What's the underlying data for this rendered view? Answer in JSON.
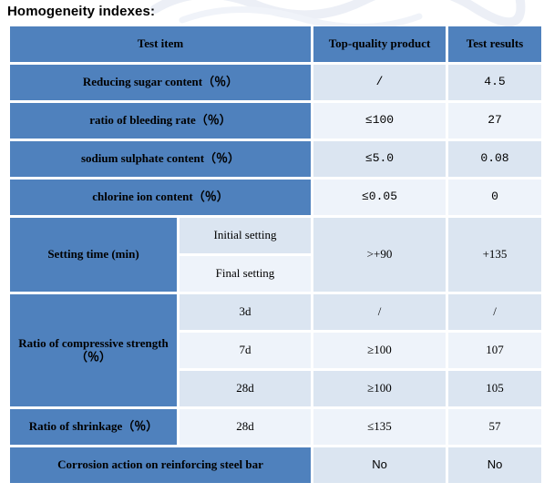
{
  "heading": "Homogeneity indexes:",
  "header": {
    "test_item": "Test item",
    "top_quality": "Top-quality product",
    "test_results": "Test results"
  },
  "rows": {
    "reducing_sugar": {
      "label": "Reducing sugar content（％）",
      "spec": "/",
      "result": "4.5"
    },
    "bleeding": {
      "label": "ratio of bleeding rate（％）",
      "spec": "≤100",
      "result": "27"
    },
    "sodium": {
      "label": "sodium sulphate content（％）",
      "spec": "≤5.0",
      "result": "0.08"
    },
    "chlorine": {
      "label": "chlorine ion content（％）",
      "spec": "≤0.05",
      "result": "0"
    },
    "setting": {
      "label": "Setting time (min)",
      "initial": "Initial setting",
      "final": "Final setting",
      "spec": ">+90",
      "result": "+135"
    },
    "compressive": {
      "label": "Ratio of compressive strength（％）",
      "d3": {
        "age": "3d",
        "spec": "/",
        "result": "/"
      },
      "d7": {
        "age": "7d",
        "spec": "≥100",
        "result": "107"
      },
      "d28": {
        "age": "28d",
        "spec": "≥100",
        "result": "105"
      }
    },
    "shrinkage": {
      "label": "Ratio of shrinkage（％）",
      "age": "28d",
      "spec": "≤135",
      "result": "57"
    },
    "corrosion": {
      "label": "Corrosion action on reinforcing steel bar",
      "spec": "No",
      "result": "No"
    }
  },
  "colors": {
    "header_blue": "#4f81bd",
    "cell_light": "#dbe5f1",
    "cell_lighter": "#eef3fa"
  }
}
